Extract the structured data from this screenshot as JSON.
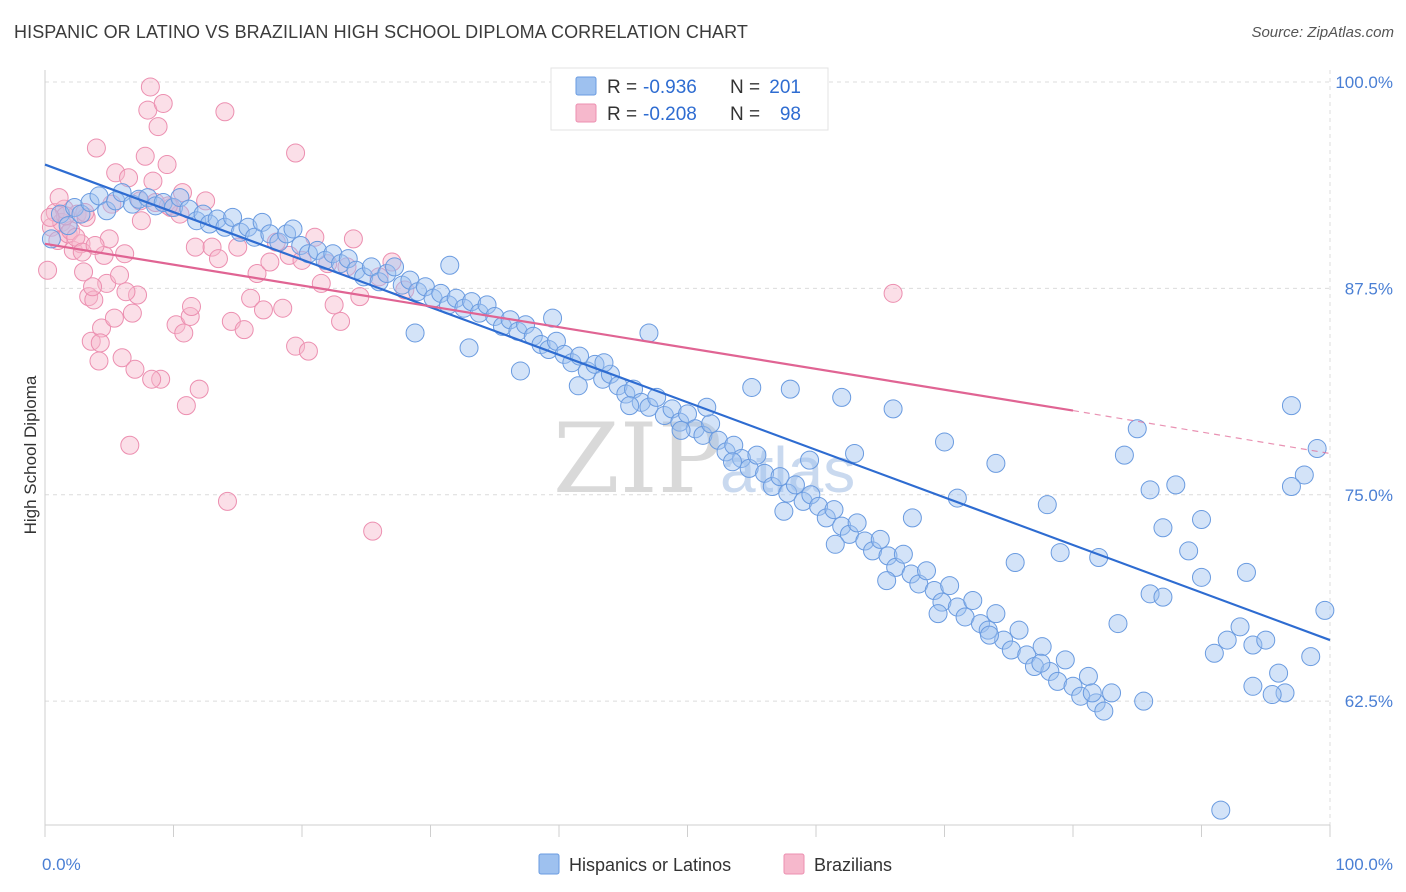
{
  "title": "HISPANIC OR LATINO VS BRAZILIAN HIGH SCHOOL DIPLOMA CORRELATION CHART",
  "source": "Source: ZipAtlas.com",
  "watermark": {
    "zip": "ZIP",
    "atlas": "atlas"
  },
  "legend": {
    "r_label": "R =",
    "n_label": "N =",
    "rows": [
      {
        "r": "-0.936",
        "n": "201",
        "color": "#9ec1ef",
        "stroke": "#6a9be0"
      },
      {
        "r": "-0.208",
        "n": "98",
        "color": "#f6b8cc",
        "stroke": "#ec8fb0"
      }
    ]
  },
  "bottom_legend": [
    "Hispanics or Latinos",
    "Brazilians"
  ],
  "chart_data": {
    "type": "scatter",
    "title": "HISPANIC OR LATINO VS BRAZILIAN HIGH SCHOOL DIPLOMA CORRELATION CHART",
    "xlabel": "",
    "ylabel": "High School Diploma",
    "xlim": [
      0,
      100
    ],
    "ylim": [
      55,
      100
    ],
    "x_tick_labels": [
      "0.0%",
      "100.0%"
    ],
    "y_tick_labels": [
      "100.0%",
      "87.5%",
      "75.0%",
      "62.5%"
    ],
    "y_ticks": [
      100,
      87.5,
      75,
      62.5
    ],
    "grid": true,
    "legend_position": "top-center",
    "colors": {
      "hispanic": "#2e6cd1",
      "brazilian": "#e06493"
    },
    "series": [
      {
        "name": "Hispanics or Latinos",
        "trend": {
          "x": [
            0,
            100
          ],
          "y": [
            95.0,
            66.2
          ]
        },
        "points": [
          [
            0.5,
            90.5
          ],
          [
            1.2,
            92.0
          ],
          [
            1.8,
            91.3
          ],
          [
            2.3,
            92.4
          ],
          [
            2.8,
            92.0
          ],
          [
            3.5,
            92.7
          ],
          [
            4.2,
            93.1
          ],
          [
            4.8,
            92.2
          ],
          [
            5.5,
            92.8
          ],
          [
            6.0,
            93.3
          ],
          [
            6.8,
            92.6
          ],
          [
            7.3,
            92.9
          ],
          [
            8.0,
            93.0
          ],
          [
            8.6,
            92.5
          ],
          [
            9.2,
            92.7
          ],
          [
            10.0,
            92.4
          ],
          [
            10.5,
            93.0
          ],
          [
            11.2,
            92.3
          ],
          [
            11.8,
            91.6
          ],
          [
            12.3,
            92.0
          ],
          [
            12.8,
            91.4
          ],
          [
            13.4,
            91.7
          ],
          [
            14.0,
            91.2
          ],
          [
            14.6,
            91.8
          ],
          [
            15.2,
            90.9
          ],
          [
            15.8,
            91.2
          ],
          [
            16.3,
            90.6
          ],
          [
            16.9,
            91.5
          ],
          [
            17.5,
            90.8
          ],
          [
            18.2,
            90.3
          ],
          [
            18.8,
            90.8
          ],
          [
            19.3,
            91.1
          ],
          [
            19.9,
            90.1
          ],
          [
            20.5,
            89.6
          ],
          [
            21.2,
            89.8
          ],
          [
            21.8,
            89.2
          ],
          [
            22.4,
            89.6
          ],
          [
            23.0,
            89.0
          ],
          [
            23.6,
            89.3
          ],
          [
            24.2,
            88.6
          ],
          [
            24.8,
            88.2
          ],
          [
            25.4,
            88.8
          ],
          [
            26.0,
            87.9
          ],
          [
            26.6,
            88.4
          ],
          [
            27.2,
            88.8
          ],
          [
            27.8,
            87.7
          ],
          [
            28.4,
            88.0
          ],
          [
            29.0,
            87.3
          ],
          [
            29.6,
            87.6
          ],
          [
            30.2,
            86.9
          ],
          [
            30.8,
            87.2
          ],
          [
            31.4,
            86.5
          ],
          [
            32.0,
            86.9
          ],
          [
            32.6,
            86.3
          ],
          [
            33.2,
            86.7
          ],
          [
            33.8,
            86.0
          ],
          [
            34.4,
            86.5
          ],
          [
            35.0,
            85.8
          ],
          [
            35.6,
            85.2
          ],
          [
            36.2,
            85.6
          ],
          [
            36.8,
            84.9
          ],
          [
            37.4,
            85.3
          ],
          [
            38.0,
            84.6
          ],
          [
            38.6,
            84.1
          ],
          [
            39.2,
            83.8
          ],
          [
            39.8,
            84.3
          ],
          [
            40.4,
            83.5
          ],
          [
            41.0,
            83.0
          ],
          [
            41.6,
            83.4
          ],
          [
            42.2,
            82.5
          ],
          [
            42.8,
            82.9
          ],
          [
            43.4,
            82.0
          ],
          [
            44.0,
            82.3
          ],
          [
            44.6,
            81.6
          ],
          [
            45.2,
            81.1
          ],
          [
            45.8,
            81.4
          ],
          [
            46.4,
            80.6
          ],
          [
            47.0,
            80.3
          ],
          [
            47.6,
            80.9
          ],
          [
            48.2,
            79.8
          ],
          [
            48.8,
            80.2
          ],
          [
            49.4,
            79.4
          ],
          [
            50.0,
            79.9
          ],
          [
            50.6,
            79.0
          ],
          [
            51.2,
            78.6
          ],
          [
            51.8,
            79.3
          ],
          [
            52.4,
            78.3
          ],
          [
            53.0,
            77.6
          ],
          [
            53.6,
            78.0
          ],
          [
            54.2,
            77.2
          ],
          [
            54.8,
            76.6
          ],
          [
            55.4,
            77.4
          ],
          [
            56.0,
            76.3
          ],
          [
            56.6,
            75.5
          ],
          [
            57.2,
            76.1
          ],
          [
            57.8,
            75.1
          ],
          [
            58.4,
            75.6
          ],
          [
            59.0,
            74.6
          ],
          [
            59.6,
            75.0
          ],
          [
            60.2,
            74.3
          ],
          [
            60.8,
            73.6
          ],
          [
            61.4,
            74.1
          ],
          [
            62.0,
            73.1
          ],
          [
            62.6,
            72.6
          ],
          [
            63.2,
            73.3
          ],
          [
            63.8,
            72.2
          ],
          [
            64.4,
            71.6
          ],
          [
            65.0,
            72.3
          ],
          [
            65.6,
            71.3
          ],
          [
            66.2,
            70.6
          ],
          [
            66.8,
            71.4
          ],
          [
            67.4,
            70.2
          ],
          [
            68.0,
            69.6
          ],
          [
            68.6,
            70.4
          ],
          [
            69.2,
            69.2
          ],
          [
            69.8,
            68.5
          ],
          [
            70.4,
            69.5
          ],
          [
            71.0,
            68.2
          ],
          [
            71.6,
            67.6
          ],
          [
            72.2,
            68.6
          ],
          [
            72.8,
            67.2
          ],
          [
            73.4,
            66.8
          ],
          [
            74.0,
            67.8
          ],
          [
            74.6,
            66.2
          ],
          [
            75.2,
            65.6
          ],
          [
            75.8,
            66.8
          ],
          [
            76.4,
            65.3
          ],
          [
            77.0,
            64.6
          ],
          [
            77.6,
            65.8
          ],
          [
            78.2,
            64.3
          ],
          [
            78.8,
            63.7
          ],
          [
            79.4,
            65.0
          ],
          [
            80.0,
            63.4
          ],
          [
            80.6,
            62.8
          ],
          [
            81.2,
            64.0
          ],
          [
            81.8,
            62.4
          ],
          [
            82.4,
            61.9
          ],
          [
            83.0,
            63.0
          ],
          [
            84.0,
            77.4
          ],
          [
            85.0,
            79.0
          ],
          [
            86.0,
            75.3
          ],
          [
            87.0,
            73.0
          ],
          [
            88.0,
            75.6
          ],
          [
            89.0,
            71.6
          ],
          [
            90.0,
            73.5
          ],
          [
            91.0,
            65.4
          ],
          [
            92.0,
            66.2
          ],
          [
            93.0,
            67.0
          ],
          [
            94.0,
            65.9
          ],
          [
            95.0,
            66.2
          ],
          [
            96.0,
            64.2
          ],
          [
            97.0,
            80.4
          ],
          [
            98.0,
            76.2
          ],
          [
            99.0,
            77.8
          ],
          [
            99.6,
            68.0
          ],
          [
            58.0,
            81.4
          ],
          [
            62.0,
            80.9
          ],
          [
            66.0,
            80.2
          ],
          [
            70.0,
            78.2
          ],
          [
            74.0,
            76.9
          ],
          [
            78.0,
            74.4
          ],
          [
            82.0,
            71.2
          ],
          [
            86.0,
            69.0
          ],
          [
            90.0,
            70.0
          ],
          [
            94.0,
            63.4
          ],
          [
            97.0,
            75.5
          ],
          [
            98.5,
            65.2
          ],
          [
            96.5,
            63.0
          ],
          [
            28.8,
            84.8
          ],
          [
            33.0,
            83.9
          ],
          [
            37.0,
            82.5
          ],
          [
            41.5,
            81.6
          ],
          [
            45.5,
            80.4
          ],
          [
            49.5,
            78.9
          ],
          [
            53.5,
            77.0
          ],
          [
            57.5,
            74.0
          ],
          [
            61.5,
            72.0
          ],
          [
            65.5,
            69.8
          ],
          [
            69.5,
            67.8
          ],
          [
            73.5,
            66.5
          ],
          [
            77.5,
            64.8
          ],
          [
            81.5,
            63.0
          ],
          [
            85.5,
            62.5
          ],
          [
            91.5,
            55.9
          ],
          [
            47.0,
            84.8
          ],
          [
            55.0,
            81.5
          ],
          [
            63.0,
            77.5
          ],
          [
            71.0,
            74.8
          ],
          [
            79.0,
            71.5
          ],
          [
            87.0,
            68.8
          ],
          [
            93.5,
            70.3
          ],
          [
            95.5,
            62.9
          ],
          [
            31.5,
            88.9
          ],
          [
            39.5,
            85.7
          ],
          [
            43.5,
            83.0
          ],
          [
            51.5,
            80.3
          ],
          [
            59.5,
            77.1
          ],
          [
            67.5,
            73.6
          ],
          [
            75.5,
            70.9
          ],
          [
            83.5,
            67.2
          ]
        ]
      },
      {
        "name": "Brazilians",
        "trend": {
          "x": [
            0,
            80
          ],
          "y": [
            90.2,
            80.1
          ]
        },
        "trend_dashed": {
          "x": [
            80,
            100
          ],
          "y": [
            80.1,
            77.5
          ]
        },
        "points": [
          [
            0.2,
            88.6
          ],
          [
            0.5,
            91.2
          ],
          [
            0.8,
            92.1
          ],
          [
            1.0,
            90.4
          ],
          [
            1.3,
            91.5
          ],
          [
            1.5,
            92.3
          ],
          [
            1.8,
            90.8
          ],
          [
            2.0,
            91.0
          ],
          [
            2.2,
            89.8
          ],
          [
            2.5,
            92.0
          ],
          [
            2.8,
            90.2
          ],
          [
            3.0,
            88.5
          ],
          [
            3.2,
            91.8
          ],
          [
            3.4,
            87.0
          ],
          [
            3.6,
            84.3
          ],
          [
            3.8,
            86.8
          ],
          [
            4.0,
            96.0
          ],
          [
            4.2,
            83.1
          ],
          [
            4.4,
            85.1
          ],
          [
            4.6,
            89.5
          ],
          [
            4.8,
            87.8
          ],
          [
            5.0,
            90.5
          ],
          [
            5.2,
            92.6
          ],
          [
            5.5,
            94.5
          ],
          [
            5.8,
            88.3
          ],
          [
            6.0,
            83.3
          ],
          [
            6.2,
            89.6
          ],
          [
            6.5,
            94.2
          ],
          [
            6.8,
            86.0
          ],
          [
            7.0,
            82.6
          ],
          [
            7.2,
            87.1
          ],
          [
            7.5,
            91.6
          ],
          [
            7.8,
            95.5
          ],
          [
            8.0,
            98.3
          ],
          [
            8.2,
            99.7
          ],
          [
            8.4,
            94.0
          ],
          [
            8.6,
            92.7
          ],
          [
            8.8,
            97.3
          ],
          [
            9.0,
            82.0
          ],
          [
            9.2,
            98.7
          ],
          [
            9.5,
            95.0
          ],
          [
            9.8,
            92.4
          ],
          [
            10.2,
            85.3
          ],
          [
            10.5,
            92.0
          ],
          [
            10.8,
            84.8
          ],
          [
            11.0,
            80.4
          ],
          [
            11.3,
            85.8
          ],
          [
            11.7,
            90.0
          ],
          [
            12.0,
            81.4
          ],
          [
            12.5,
            92.8
          ],
          [
            13.0,
            90.0
          ],
          [
            13.5,
            89.3
          ],
          [
            14.0,
            98.2
          ],
          [
            14.2,
            74.6
          ],
          [
            14.5,
            85.5
          ],
          [
            15.0,
            90.0
          ],
          [
            15.5,
            85.0
          ],
          [
            16.0,
            86.9
          ],
          [
            16.5,
            88.4
          ],
          [
            17.0,
            86.2
          ],
          [
            17.5,
            89.1
          ],
          [
            18.0,
            90.3
          ],
          [
            18.5,
            86.3
          ],
          [
            19.0,
            89.5
          ],
          [
            19.5,
            84.0
          ],
          [
            20.0,
            89.2
          ],
          [
            20.5,
            83.7
          ],
          [
            21.0,
            90.6
          ],
          [
            21.5,
            87.8
          ],
          [
            22.0,
            89.0
          ],
          [
            22.5,
            86.5
          ],
          [
            23.0,
            85.5
          ],
          [
            23.5,
            88.8
          ],
          [
            24.0,
            90.5
          ],
          [
            24.5,
            87.0
          ],
          [
            25.5,
            72.8
          ],
          [
            26.0,
            88.2
          ],
          [
            27.0,
            89.1
          ],
          [
            28.0,
            87.4
          ],
          [
            19.5,
            95.7
          ],
          [
            1.1,
            93.0
          ],
          [
            1.6,
            91.9
          ],
          [
            2.4,
            90.6
          ],
          [
            3.1,
            92.1
          ],
          [
            3.7,
            87.6
          ],
          [
            4.3,
            84.2
          ],
          [
            5.4,
            85.7
          ],
          [
            6.3,
            87.3
          ],
          [
            7.4,
            92.8
          ],
          [
            8.3,
            82.0
          ],
          [
            9.6,
            92.5
          ],
          [
            10.7,
            93.3
          ],
          [
            11.4,
            86.4
          ],
          [
            6.6,
            78.0
          ],
          [
            2.9,
            89.7
          ],
          [
            3.9,
            90.1
          ],
          [
            66.0,
            87.2
          ],
          [
            0.4,
            91.8
          ]
        ]
      }
    ]
  }
}
